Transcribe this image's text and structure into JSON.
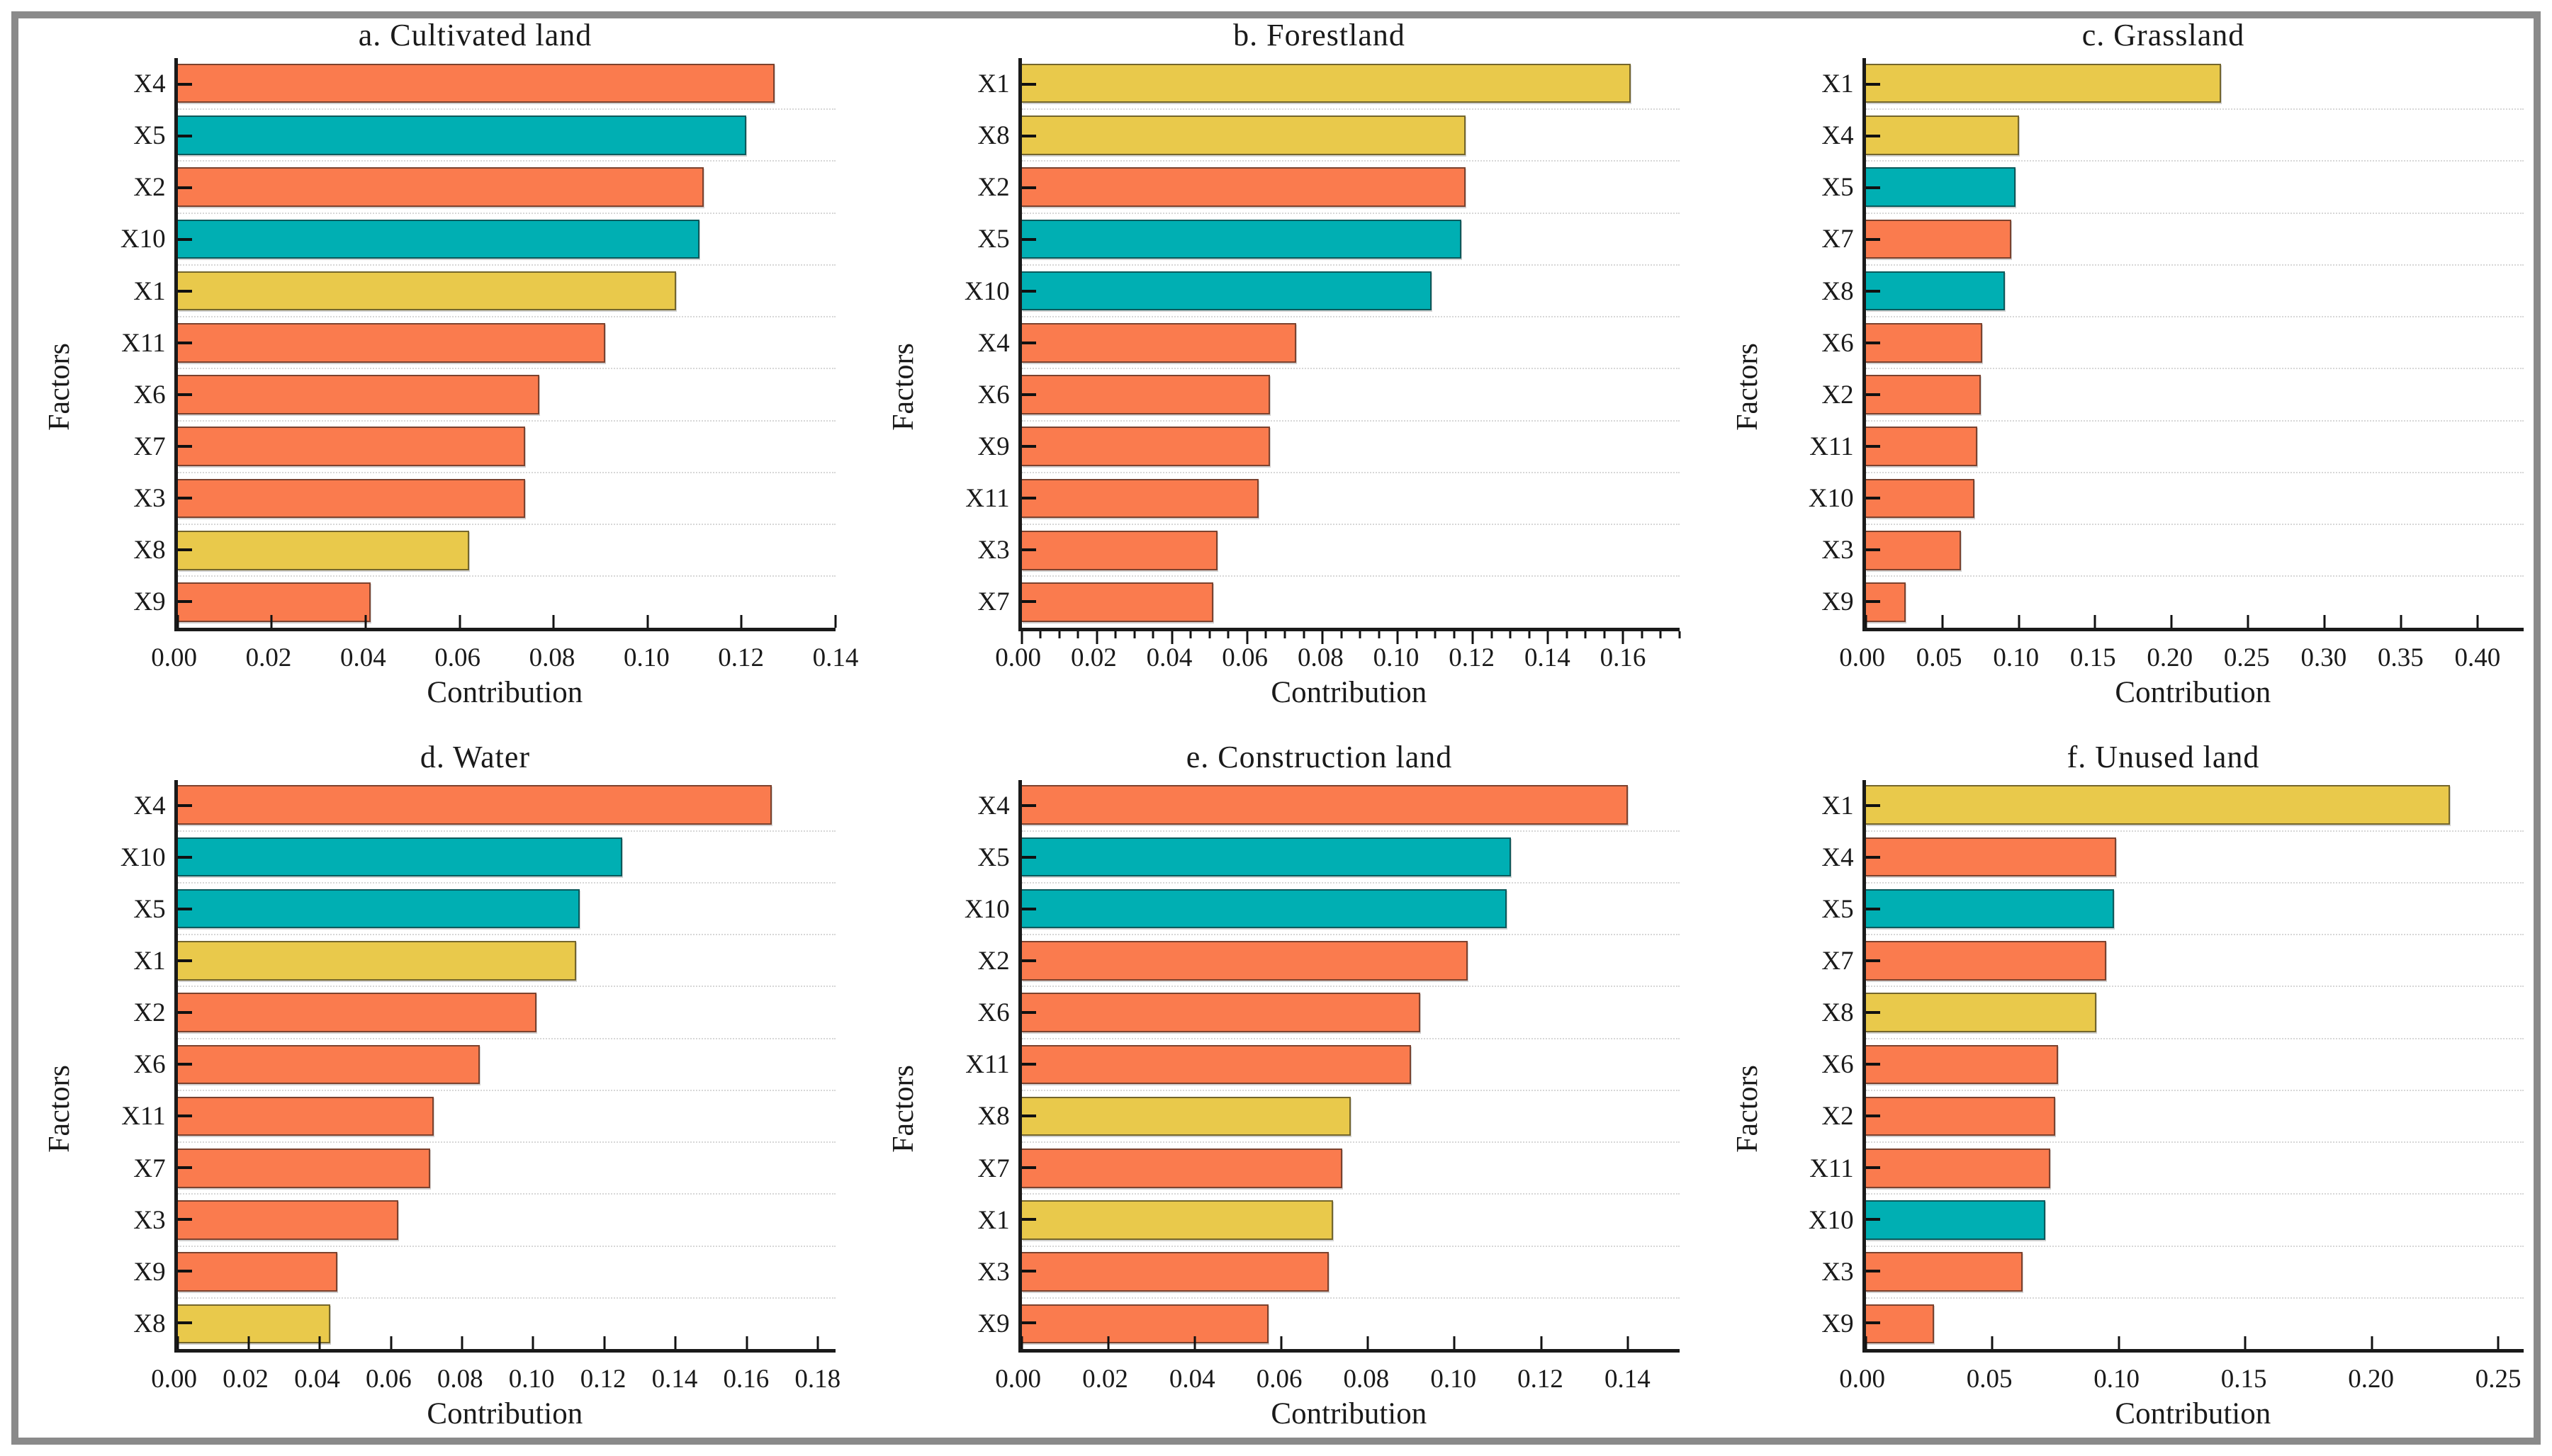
{
  "figure": {
    "background": "#ffffff",
    "frame_border_color": "#8a8a8a",
    "text_color": "#1a1a1a",
    "gridline_color": "#d7d7d7"
  },
  "palette": {
    "orange": "#FA7B4E",
    "teal": "#00AFB3",
    "yellow": "#E9C94B"
  },
  "chart_data": [
    {
      "type": "bar",
      "orientation": "horizontal",
      "title": "a. Cultivated land",
      "xlabel": "Contribution",
      "ylabel": "Factors",
      "xlim": [
        0,
        0.14
      ],
      "tick_step": 0.02,
      "tick_last": 0.14,
      "minor_step": null,
      "ticks_outside": false,
      "grid": "dotted-horizontal",
      "categories": [
        "X4",
        "X5",
        "X2",
        "X10",
        "X1",
        "X11",
        "X6",
        "X7",
        "X3",
        "X8",
        "X9"
      ],
      "values": [
        0.127,
        0.121,
        0.112,
        0.111,
        0.106,
        0.091,
        0.077,
        0.074,
        0.074,
        0.062,
        0.041
      ],
      "colors": [
        "orange",
        "teal",
        "orange",
        "teal",
        "yellow",
        "orange",
        "orange",
        "orange",
        "orange",
        "yellow",
        "orange"
      ]
    },
    {
      "type": "bar",
      "orientation": "horizontal",
      "title": "b. Forestland",
      "xlabel": "Contribution",
      "ylabel": "Factors",
      "xlim": [
        0,
        0.175
      ],
      "tick_step": 0.02,
      "tick_last": 0.16,
      "minor_step": 0.005,
      "ticks_outside": true,
      "grid": "dotted-horizontal",
      "categories": [
        "X1",
        "X8",
        "X2",
        "X5",
        "X10",
        "X4",
        "X6",
        "X9",
        "X11",
        "X3",
        "X7"
      ],
      "values": [
        0.162,
        0.118,
        0.118,
        0.117,
        0.109,
        0.073,
        0.066,
        0.066,
        0.063,
        0.052,
        0.051
      ],
      "colors": [
        "yellow",
        "yellow",
        "orange",
        "teal",
        "teal",
        "orange",
        "orange",
        "orange",
        "orange",
        "orange",
        "orange"
      ]
    },
    {
      "type": "bar",
      "orientation": "horizontal",
      "title": "c. Grassland",
      "xlabel": "Contribution",
      "ylabel": "Factors",
      "xlim": [
        0,
        0.43
      ],
      "tick_step": 0.05,
      "tick_last": 0.4,
      "minor_step": null,
      "ticks_outside": false,
      "grid": "dotted-horizontal",
      "categories": [
        "X1",
        "X4",
        "X5",
        "X7",
        "X8",
        "X6",
        "X2",
        "X11",
        "X10",
        "X3",
        "X9"
      ],
      "values": [
        0.232,
        0.1,
        0.098,
        0.095,
        0.091,
        0.076,
        0.075,
        0.073,
        0.071,
        0.062,
        0.026
      ],
      "colors": [
        "yellow",
        "yellow",
        "teal",
        "orange",
        "teal",
        "orange",
        "orange",
        "orange",
        "orange",
        "orange",
        "orange"
      ]
    },
    {
      "type": "bar",
      "orientation": "horizontal",
      "title": "d. Water",
      "xlabel": "Contribution",
      "ylabel": "Factors",
      "xlim": [
        0,
        0.185
      ],
      "tick_step": 0.02,
      "tick_last": 0.18,
      "minor_step": null,
      "ticks_outside": false,
      "grid": "dotted-horizontal",
      "categories": [
        "X4",
        "X10",
        "X5",
        "X1",
        "X2",
        "X6",
        "X11",
        "X7",
        "X3",
        "X9",
        "X8"
      ],
      "values": [
        0.167,
        0.125,
        0.113,
        0.112,
        0.101,
        0.085,
        0.072,
        0.071,
        0.062,
        0.045,
        0.043
      ],
      "colors": [
        "orange",
        "teal",
        "teal",
        "yellow",
        "orange",
        "orange",
        "orange",
        "orange",
        "orange",
        "orange",
        "yellow"
      ]
    },
    {
      "type": "bar",
      "orientation": "horizontal",
      "title": "e. Construction land",
      "xlabel": "Contribution",
      "ylabel": "Factors",
      "xlim": [
        0,
        0.152
      ],
      "tick_step": 0.02,
      "tick_last": 0.14,
      "minor_step": null,
      "ticks_outside": false,
      "grid": "dotted-horizontal",
      "categories": [
        "X4",
        "X5",
        "X10",
        "X2",
        "X6",
        "X11",
        "X8",
        "X7",
        "X1",
        "X3",
        "X9"
      ],
      "values": [
        0.14,
        0.113,
        0.112,
        0.103,
        0.092,
        0.09,
        0.076,
        0.074,
        0.072,
        0.071,
        0.057
      ],
      "colors": [
        "orange",
        "teal",
        "teal",
        "orange",
        "orange",
        "orange",
        "yellow",
        "orange",
        "yellow",
        "orange",
        "orange"
      ]
    },
    {
      "type": "bar",
      "orientation": "horizontal",
      "title": "f. Unused land",
      "xlabel": "Contribution",
      "ylabel": "Factors",
      "xlim": [
        0,
        0.26
      ],
      "tick_step": 0.05,
      "tick_last": 0.25,
      "minor_step": null,
      "ticks_outside": false,
      "grid": "dotted-horizontal",
      "categories": [
        "X1",
        "X4",
        "X5",
        "X7",
        "X8",
        "X6",
        "X2",
        "X11",
        "X10",
        "X3",
        "X9"
      ],
      "values": [
        0.231,
        0.099,
        0.098,
        0.095,
        0.091,
        0.076,
        0.075,
        0.073,
        0.071,
        0.062,
        0.027
      ],
      "colors": [
        "yellow",
        "orange",
        "teal",
        "orange",
        "yellow",
        "orange",
        "orange",
        "orange",
        "teal",
        "orange",
        "orange"
      ]
    }
  ]
}
